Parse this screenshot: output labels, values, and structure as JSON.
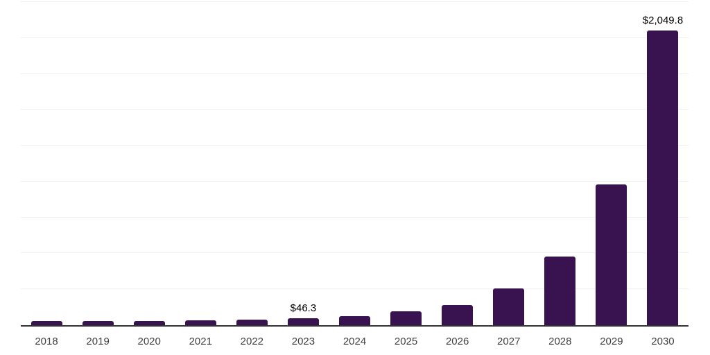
{
  "chart_data": {
    "type": "bar",
    "title": "",
    "xlabel": "",
    "ylabel": "",
    "categories": [
      "2018",
      "2019",
      "2020",
      "2021",
      "2022",
      "2023",
      "2024",
      "2025",
      "2026",
      "2027",
      "2028",
      "2029",
      "2030"
    ],
    "values": [
      28,
      27.5,
      31,
      33.5,
      38.5,
      46.3,
      64,
      96,
      141,
      255,
      480,
      980,
      2049.8
    ],
    "data_labels": [
      "",
      "",
      "",
      "",
      "",
      "$46.3",
      "",
      "",
      "",
      "",
      "",
      "",
      "$2,049.8"
    ],
    "labeled_values": {
      "2023": 46.3,
      "2030": 2049.8
    },
    "values_note": "Only 2023 and 2030 carry on-chart labels; other values estimated from gridlines (interval 250).",
    "value_prefix": "$",
    "ylim": [
      0,
      2250
    ],
    "gridline_interval": 250,
    "grid": true,
    "legend": false,
    "y_axis_labels_visible": false
  },
  "colors": {
    "bar": "#39134F",
    "gridline": "#F0F0F0",
    "axis": "#333333",
    "tick_label": "#404040",
    "value_label": "#000000",
    "background": "#FFFFFF"
  }
}
